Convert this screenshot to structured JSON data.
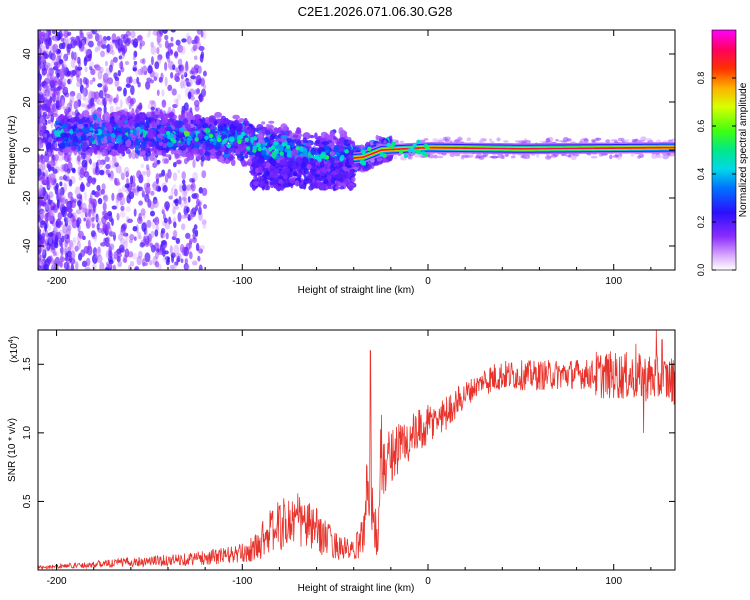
{
  "title": "C2E1.2026.071.06.30.G28",
  "colors": {
    "snr_line": "#e8332c",
    "background": "#ffffff",
    "axis": "#000000"
  },
  "chart_data": [
    {
      "type": "heatmap",
      "name": "spectrogram",
      "xlabel": "Height of straight line (km)",
      "ylabel": "Frequency (Hz)",
      "xlim": [
        -210,
        133
      ],
      "ylim": [
        -50,
        50
      ],
      "xticks": [
        -200,
        -100,
        0,
        100
      ],
      "yticks": [
        -40,
        -20,
        0,
        20,
        40
      ],
      "colorbar": {
        "label": "Normalized spectral amplitude",
        "range": [
          0,
          1
        ],
        "ticks": [
          "0.0",
          "0.2",
          "0.4",
          "0.6",
          "0.8"
        ],
        "colormap": [
          "#ffffff",
          "#cc88ff",
          "#6a00ff",
          "#0020ff",
          "#00c8ff",
          "#00e890",
          "#40ff00",
          "#d8ff00",
          "#ffb000",
          "#ff3a00",
          "#ff0048",
          "#ff00ff"
        ]
      },
      "description_points": [
        {
          "x": -150,
          "f": 7
        },
        {
          "x": -100,
          "f": 4
        },
        {
          "x": -70,
          "f": -2
        },
        {
          "x": -50,
          "f": -4
        },
        {
          "x": -35,
          "f": -3
        },
        {
          "x": -25,
          "f": 0
        },
        {
          "x": 0,
          "f": 1
        },
        {
          "x": 50,
          "f": 0.5
        },
        {
          "x": 130,
          "f": 1
        }
      ]
    },
    {
      "type": "line",
      "name": "snr",
      "xlabel": "Height of straight line (km)",
      "ylabel": "SNR (10 * v/v)",
      "yscale_label": "(x10",
      "yscale_exp": "4",
      "ylabel_unit": ")",
      "xlim": [
        -210,
        133
      ],
      "ylim": [
        0,
        1.75
      ],
      "xticks": [
        -200,
        -100,
        0,
        100
      ],
      "yticks": [
        0.5,
        1.0,
        1.5
      ],
      "ytick_labels": [
        "0.5",
        "1.0",
        "1.5"
      ],
      "envelope": {
        "x": [
          -210,
          -180,
          -160,
          -140,
          -120,
          -100,
          -90,
          -80,
          -70,
          -60,
          -50,
          -40,
          -35,
          -31,
          -29,
          -27,
          -25,
          -20,
          -10,
          0,
          10,
          20,
          30,
          40,
          60,
          80,
          100,
          120,
          133
        ],
        "y": [
          0.02,
          0.04,
          0.06,
          0.07,
          0.09,
          0.12,
          0.18,
          0.25,
          0.28,
          0.22,
          0.14,
          0.1,
          0.2,
          0.6,
          0.3,
          0.12,
          0.7,
          0.85,
          0.95,
          1.05,
          1.15,
          1.28,
          1.38,
          1.42,
          1.42,
          1.43,
          1.42,
          1.4,
          1.38
        ]
      },
      "spikes": [
        {
          "x": -31,
          "y": 1.6
        },
        {
          "x": -73,
          "y": 0.5
        },
        {
          "x": 123,
          "y": 1.75
        },
        {
          "x": 126,
          "y": 1.68
        },
        {
          "x": 112,
          "y": 1.65
        },
        {
          "x": 116,
          "y": 1.0
        }
      ]
    }
  ]
}
